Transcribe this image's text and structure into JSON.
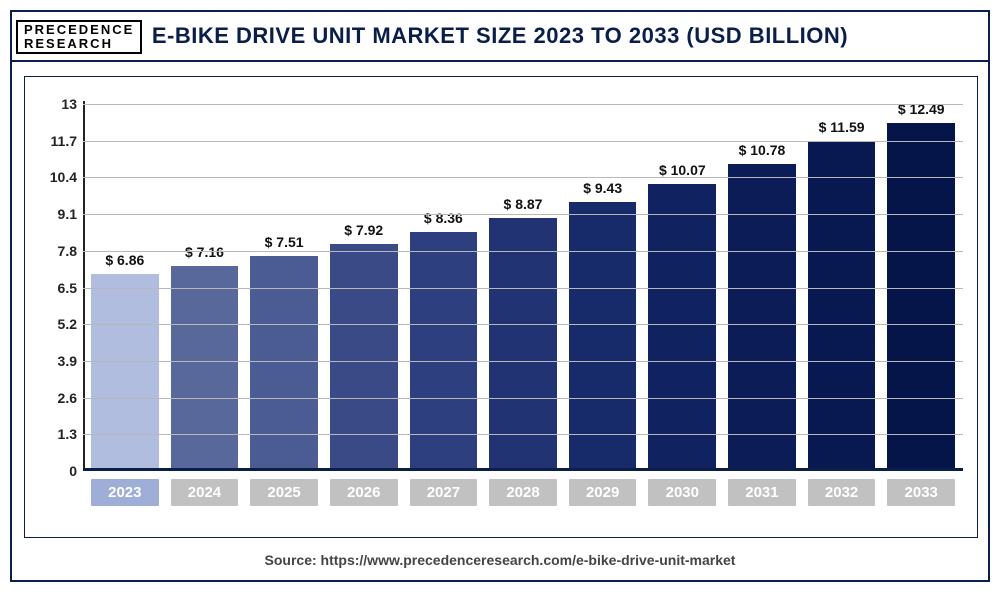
{
  "logo": {
    "line1": "PRECEDENCE",
    "line2": "RESEARCH"
  },
  "title": "E-BIKE DRIVE UNIT MARKET SIZE 2023 TO 2033 (USD BILLION)",
  "source": "Source: https://www.precedenceresearch.com/e-bike-drive-unit-market",
  "chart": {
    "type": "bar",
    "ylim": [
      0,
      13
    ],
    "ytick_step": 1.3,
    "yticks": [
      0,
      1.3,
      2.6,
      3.9,
      5.2,
      6.5,
      7.8,
      9.1,
      10.4,
      11.7,
      13
    ],
    "grid_color": "#b8b8b8",
    "axis_color": "#0a1e4a",
    "label_fontsize": 14,
    "value_prefix": "$ ",
    "categories": [
      "2023",
      "2024",
      "2025",
      "2026",
      "2027",
      "2028",
      "2029",
      "2030",
      "2031",
      "2032",
      "2033"
    ],
    "values": [
      6.86,
      7.16,
      7.51,
      7.92,
      8.36,
      8.87,
      9.43,
      10.07,
      10.78,
      11.59,
      12.49
    ],
    "bar_colors": [
      "#b0bdde",
      "#59689b",
      "#4b5b93",
      "#3a4a87",
      "#2d3f7e",
      "#213373",
      "#172a69",
      "#102260",
      "#0b1c57",
      "#081850",
      "#05154a"
    ],
    "xlabel_bg_first": "#9faed6",
    "xlabel_bg": "#c1c1c1",
    "xlabel_color": "#ffffff"
  }
}
